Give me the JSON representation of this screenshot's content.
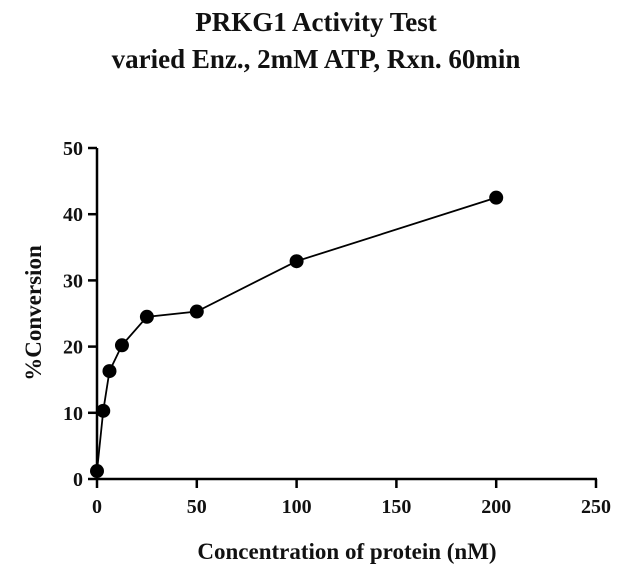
{
  "chart_data": {
    "type": "line",
    "title": "PRKG1 Activity Test",
    "subtitle": "varied Enz., 2mM ATP, Rxn. 60min",
    "xlabel": "Concentration of protein (nM)",
    "ylabel": "%Conversion",
    "xlim": [
      0,
      250
    ],
    "ylim": [
      0,
      50
    ],
    "xticks": [
      0,
      50,
      100,
      150,
      200,
      250
    ],
    "yticks": [
      0,
      10,
      20,
      30,
      40,
      50
    ],
    "grid": false,
    "series": [
      {
        "x": [
          0,
          3.125,
          6.25,
          12.5,
          25,
          50,
          100,
          200
        ],
        "y": [
          1.2,
          10.3,
          16.3,
          20.2,
          24.5,
          25.3,
          32.9,
          42.5
        ]
      }
    ],
    "colors": {
      "line": "#000000",
      "marker": "#000000",
      "axis": "#000000"
    }
  }
}
